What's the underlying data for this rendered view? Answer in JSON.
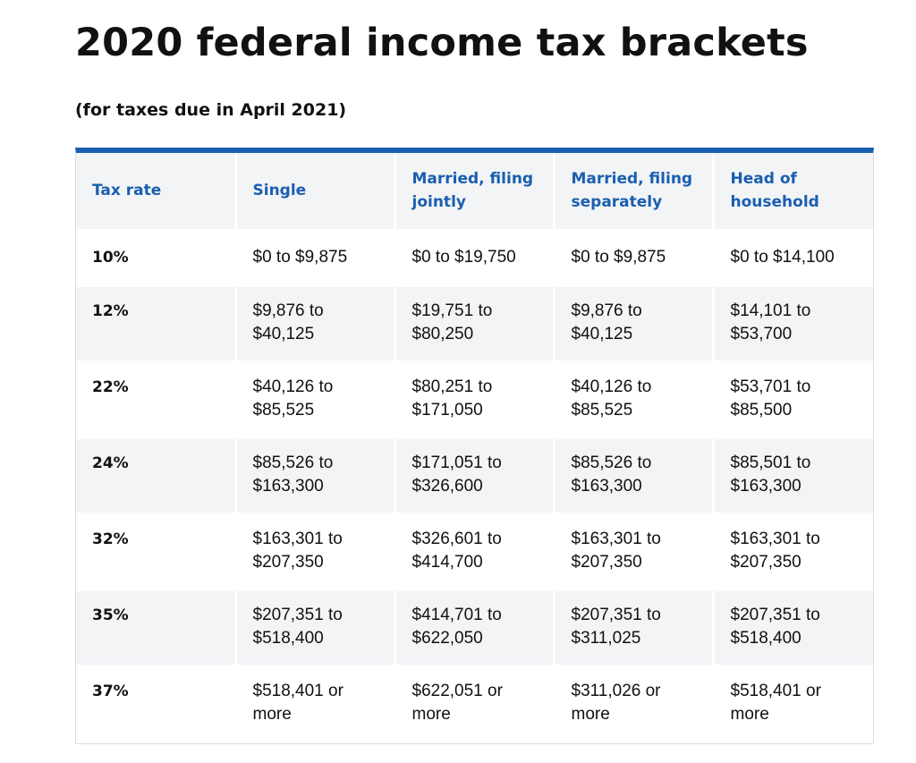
{
  "title": "2020 federal income tax brackets",
  "subtitle": "(for taxes due in April 2021)",
  "colors": {
    "accent": "#1a5eb0",
    "row_alt": "#f3f4f6",
    "text": "#111111"
  },
  "table": {
    "headers": [
      "Tax rate",
      "Single",
      "Married, filing jointly",
      "Married, filing separately",
      "Head of household"
    ],
    "rows": [
      [
        "10%",
        "$0 to $9,875",
        "$0 to $19,750",
        "$0 to $9,875",
        "$0 to $14,100"
      ],
      [
        "12%",
        "$9,876 to $40,125",
        "$19,751 to $80,250",
        "$9,876 to $40,125",
        "$14,101 to $53,700"
      ],
      [
        "22%",
        "$40,126 to $85,525",
        "$80,251 to $171,050",
        "$40,126 to $85,525",
        "$53,701 to $85,500"
      ],
      [
        "24%",
        "$85,526 to $163,300",
        "$171,051 to $326,600",
        "$85,526 to $163,300",
        "$85,501 to $163,300"
      ],
      [
        "32%",
        "$163,301 to $207,350",
        "$326,601 to $414,700",
        "$163,301 to $207,350",
        "$163,301 to $207,350"
      ],
      [
        "35%",
        "$207,351 to $518,400",
        "$414,701 to $622,050",
        "$207,351 to $311,025",
        "$207,351 to $518,400"
      ],
      [
        "37%",
        "$518,401 or more",
        "$622,051 or more",
        "$311,026 or more",
        "$518,401 or more"
      ]
    ]
  }
}
